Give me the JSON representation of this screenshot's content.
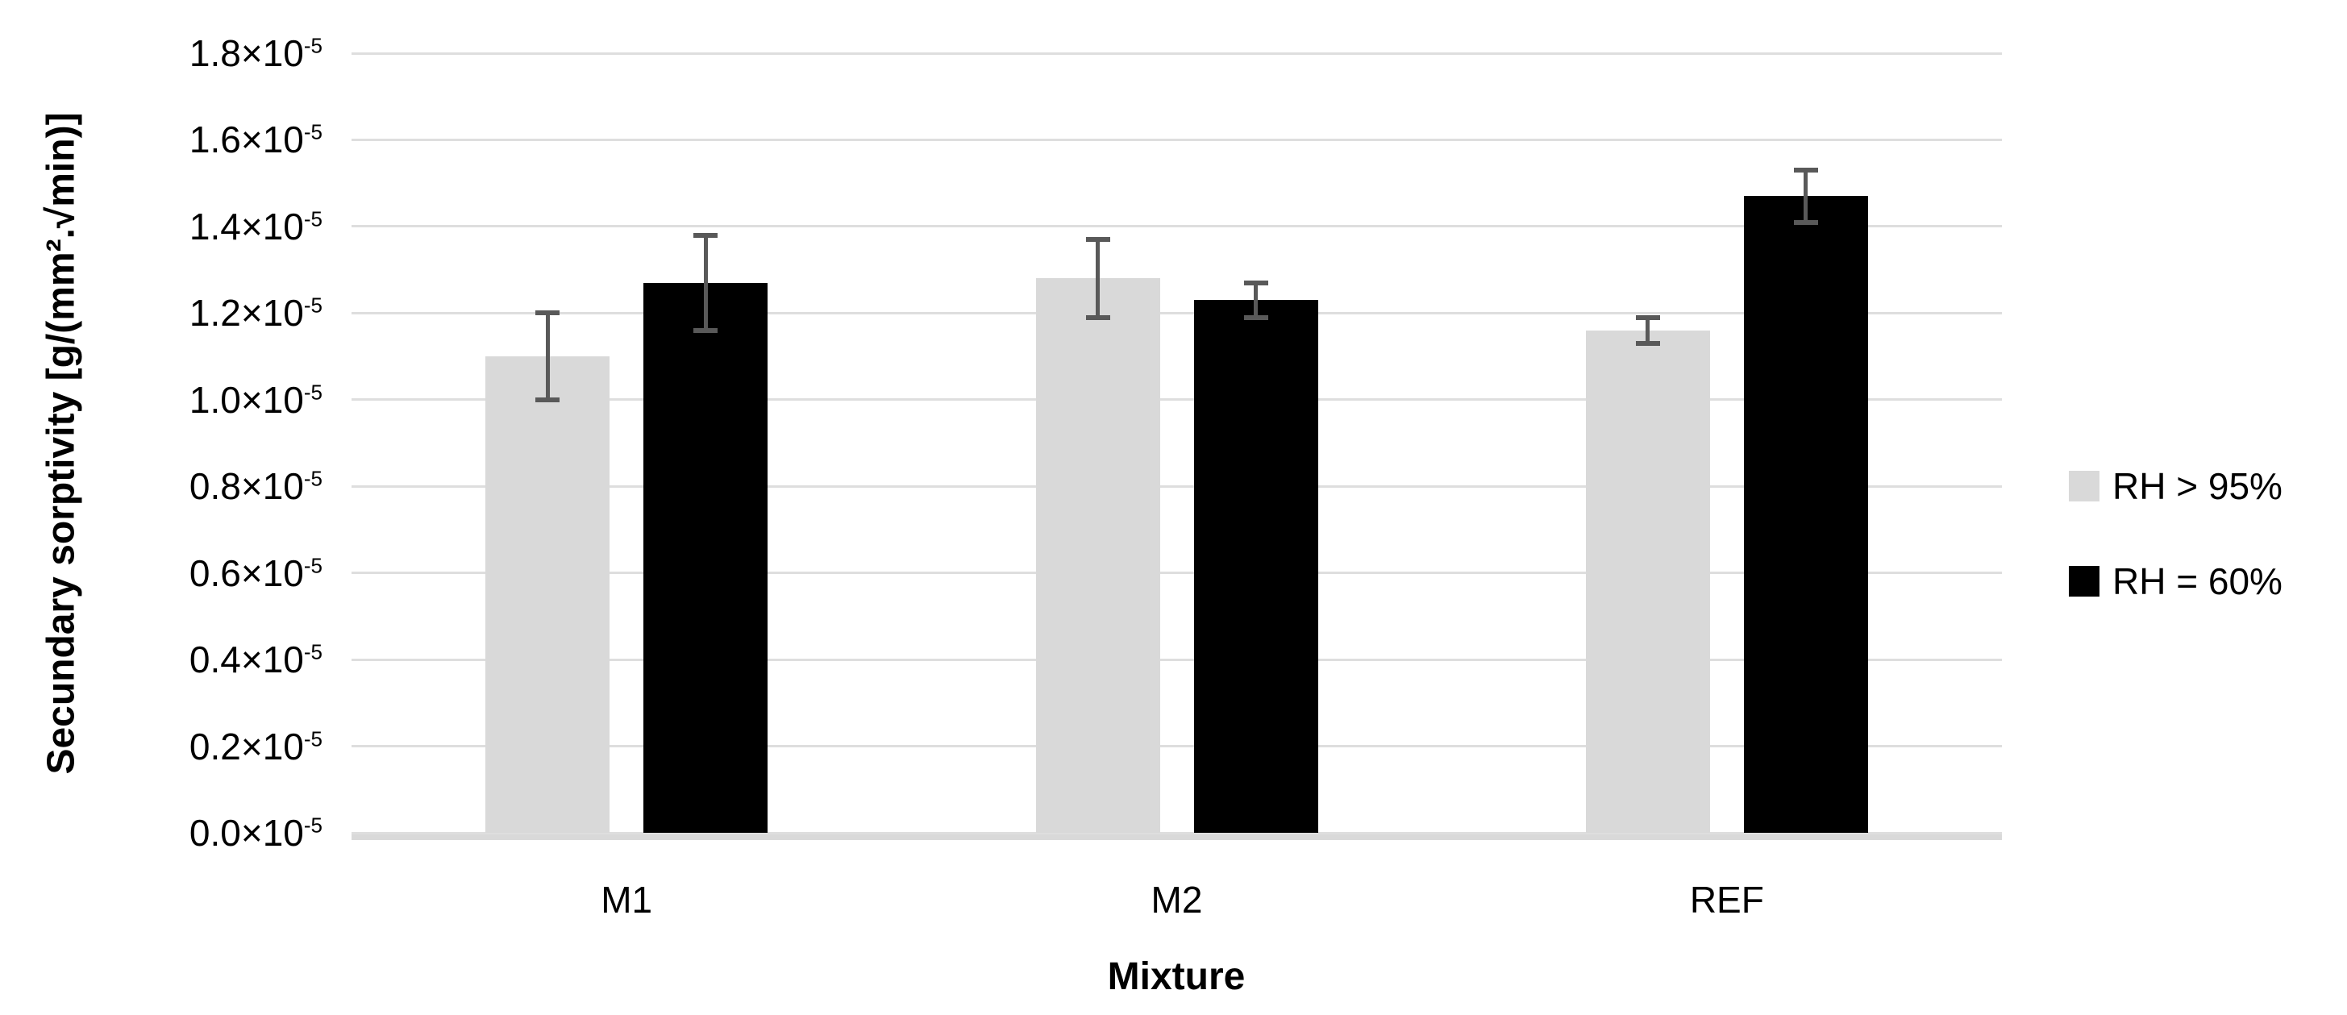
{
  "chart_data": {
    "type": "bar",
    "xlabel": "Mixture",
    "ylabel": "Secundary sorptivity [g/(mm².√min)]",
    "categories": [
      "M1",
      "M2",
      "REF"
    ],
    "series": [
      {
        "name": "RH > 95%",
        "color": "#d9d9d9",
        "values_e5": [
          1.1,
          1.28,
          1.16
        ],
        "errors_e5": [
          0.1,
          0.09,
          0.03
        ]
      },
      {
        "name": "RH = 60%",
        "color": "#000000",
        "values_e5": [
          1.27,
          1.23,
          1.47
        ],
        "errors_e5": [
          0.11,
          0.04,
          0.06
        ]
      }
    ],
    "y_axis": {
      "min_e5": 0.0,
      "max_e5": 1.8,
      "step_e5": 0.2,
      "tick_suffix_base": "×10",
      "tick_exponent": "-5",
      "unit_note": "values are ×10⁻⁵ g/(mm².√min)"
    },
    "grid": true,
    "legend_position": "right",
    "gridline_color": "#dedede",
    "axis_line_color": "#d9d9d9",
    "error_bar_color": "#595959"
  }
}
